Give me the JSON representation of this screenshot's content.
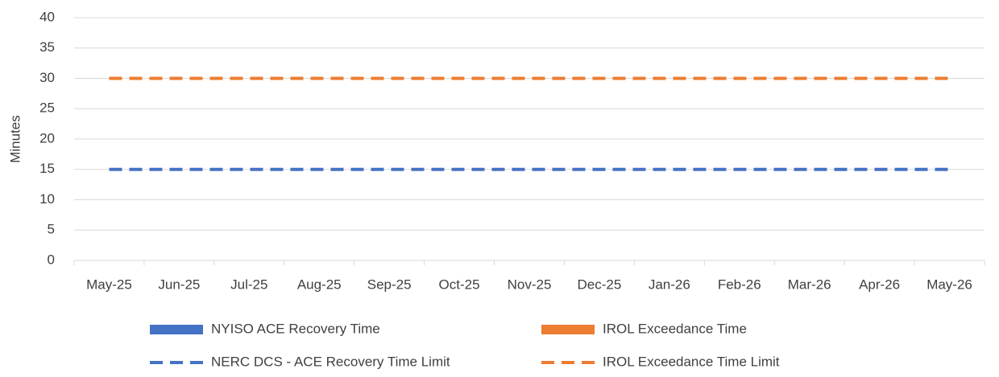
{
  "chart_data": {
    "type": "combo",
    "y_label": "Minutes",
    "categories": [
      "May-25",
      "Jun-25",
      "Jul-25",
      "Aug-25",
      "Sep-25",
      "Oct-25",
      "Nov-25",
      "Dec-25",
      "Jan-26",
      "Feb-26",
      "Mar-26",
      "Apr-26",
      "May-26"
    ],
    "series": [
      {
        "name": "NYISO ACE Recovery Time",
        "type": "bar",
        "color": "#4472c4",
        "values": [
          null,
          null,
          null,
          null,
          null,
          null,
          null,
          null,
          null,
          null,
          null,
          null,
          null
        ]
      },
      {
        "name": "IROL Exceedance Time",
        "type": "bar",
        "color": "#ed7d31",
        "values": [
          null,
          null,
          null,
          null,
          null,
          null,
          null,
          null,
          null,
          null,
          null,
          null,
          null
        ]
      },
      {
        "name": "NERC DCS - ACE Recovery Time Limit",
        "type": "line",
        "dashed": true,
        "color": "#4472c4",
        "values": [
          15,
          15,
          15,
          15,
          15,
          15,
          15,
          15,
          15,
          15,
          15,
          15,
          15
        ]
      },
      {
        "name": "IROL Exceedance Time Limit",
        "type": "line",
        "dashed": true,
        "color": "#ed7d31",
        "values": [
          30,
          30,
          30,
          30,
          30,
          30,
          30,
          30,
          30,
          30,
          30,
          30,
          30
        ]
      }
    ],
    "ylim": [
      0,
      40
    ],
    "yticks": [
      0,
      5,
      10,
      15,
      20,
      25,
      30,
      35,
      40
    ],
    "grid": true
  }
}
